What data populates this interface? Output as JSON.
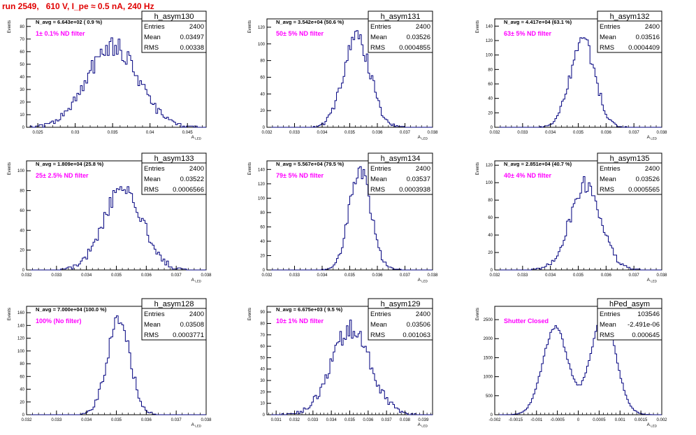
{
  "title": "run 2549,   610 V, I_pe ≈ 0.5 nA, 240 Hz",
  "ylabel": "Events",
  "xlabel": "A_LED",
  "stat_labels": {
    "entries": "Entries",
    "mean": "Mean",
    "rms": "RMS"
  },
  "colors": {
    "title": "#e00000",
    "hist": "#00007f",
    "annotation": "#ff00ff",
    "axis": "#000000"
  },
  "chart_data": [
    {
      "type": "histogram",
      "name": "h_asym130",
      "navg": "N_avg = 6.643e+02 ( 0.9 %)",
      "filter": "1± 0.1% ND filter",
      "entries": "2400",
      "mean": "0.03497",
      "rms": "0.00338",
      "xlim": [
        0.0235,
        0.0475
      ],
      "ylim": [
        0,
        86
      ],
      "xticks": [
        0.025,
        0.03,
        0.035,
        0.04,
        0.045
      ],
      "xticklabels": [
        "0.025",
        "0.03",
        "0.035",
        "0.04",
        "0.045"
      ],
      "yticks": [
        0,
        10,
        20,
        30,
        40,
        50,
        60,
        70,
        80
      ],
      "yticklabels": [
        "0",
        "10",
        "20",
        "30",
        "40",
        "50",
        "60",
        "70",
        "80"
      ],
      "mu": 0.035,
      "sigma": 0.00338,
      "peak": 65,
      "nbins": 100,
      "seed": 130
    },
    {
      "type": "histogram",
      "name": "h_asym131",
      "navg": "N_avg = 3.542e+04 (50.6 %)",
      "filter": "50± 5% ND filter",
      "entries": "2400",
      "mean": "0.03526",
      "rms": "0.0004855",
      "xlim": [
        0.032,
        0.038
      ],
      "ylim": [
        0,
        130
      ],
      "xticks": [
        0.032,
        0.033,
        0.034,
        0.035,
        0.036,
        0.037,
        0.038
      ],
      "xticklabels": [
        "0.032",
        "0.033",
        "0.034",
        "0.035",
        "0.036",
        "0.037",
        "0.038"
      ],
      "yticks": [
        0,
        20,
        40,
        60,
        80,
        100,
        120
      ],
      "yticklabels": [
        "0",
        "20",
        "40",
        "60",
        "80",
        "100",
        "120"
      ],
      "mu": 0.03526,
      "sigma": 0.000486,
      "peak": 108,
      "nbins": 100,
      "seed": 131
    },
    {
      "type": "histogram",
      "name": "h_asym132",
      "navg": "N_avg = 4.417e+04 (63.1 %)",
      "filter": "63± 5% ND filter",
      "entries": "2400",
      "mean": "0.03516",
      "rms": "0.0004409",
      "xlim": [
        0.032,
        0.038
      ],
      "ylim": [
        0,
        150
      ],
      "xticks": [
        0.032,
        0.033,
        0.034,
        0.035,
        0.036,
        0.037,
        0.038
      ],
      "xticklabels": [
        "0.032",
        "0.033",
        "0.034",
        "0.035",
        "0.036",
        "0.037",
        "0.038"
      ],
      "yticks": [
        0,
        20,
        40,
        60,
        80,
        100,
        120,
        140
      ],
      "yticklabels": [
        "0",
        "20",
        "40",
        "60",
        "80",
        "100",
        "120",
        "140"
      ],
      "mu": 0.03516,
      "sigma": 0.000441,
      "peak": 122,
      "nbins": 100,
      "seed": 132
    },
    {
      "type": "histogram",
      "name": "h_asym133",
      "navg": "N_avg = 1.809e+04 (25.8 %)",
      "filter": "25± 2.5% ND filter",
      "entries": "2400",
      "mean": "0.03522",
      "rms": "0.0006566",
      "xlim": [
        0.032,
        0.038
      ],
      "ylim": [
        0,
        110
      ],
      "xticks": [
        0.032,
        0.033,
        0.034,
        0.035,
        0.036,
        0.037,
        0.038
      ],
      "xticklabels": [
        "0.032",
        "0.033",
        "0.034",
        "0.035",
        "0.036",
        "0.037",
        "0.038"
      ],
      "yticks": [
        0,
        20,
        40,
        60,
        80,
        100
      ],
      "yticklabels": [
        "0",
        "20",
        "40",
        "60",
        "80",
        "100"
      ],
      "mu": 0.03522,
      "sigma": 0.000657,
      "peak": 82,
      "nbins": 100,
      "seed": 133
    },
    {
      "type": "histogram",
      "name": "h_asym134",
      "navg": "N_avg = 5.567e+04 (79.5 %)",
      "filter": "79± 5% ND filter",
      "entries": "2400",
      "mean": "0.03537",
      "rms": "0.0003938",
      "xlim": [
        0.032,
        0.038
      ],
      "ylim": [
        0,
        152
      ],
      "xticks": [
        0.032,
        0.033,
        0.034,
        0.035,
        0.036,
        0.037,
        0.038
      ],
      "xticklabels": [
        "0.032",
        "0.033",
        "0.034",
        "0.035",
        "0.036",
        "0.037",
        "0.038"
      ],
      "yticks": [
        0,
        20,
        40,
        60,
        80,
        100,
        120,
        140
      ],
      "yticklabels": [
        "0",
        "20",
        "40",
        "60",
        "80",
        "100",
        "120",
        "140"
      ],
      "mu": 0.03537,
      "sigma": 0.000394,
      "peak": 138,
      "nbins": 100,
      "seed": 134
    },
    {
      "type": "histogram",
      "name": "h_asym135",
      "navg": "N_avg = 2.851e+04 (40.7 %)",
      "filter": "40± 4% ND filter",
      "entries": "2400",
      "mean": "0.03526",
      "rms": "0.0005565",
      "xlim": [
        0.032,
        0.038
      ],
      "ylim": [
        0,
        125
      ],
      "xticks": [
        0.032,
        0.033,
        0.034,
        0.035,
        0.036,
        0.037,
        0.038
      ],
      "xticklabels": [
        "0.032",
        "0.033",
        "0.034",
        "0.035",
        "0.036",
        "0.037",
        "0.038"
      ],
      "yticks": [
        0,
        20,
        40,
        60,
        80,
        100,
        120
      ],
      "yticklabels": [
        "0",
        "20",
        "40",
        "60",
        "80",
        "100",
        "120"
      ],
      "mu": 0.03526,
      "sigma": 0.000557,
      "peak": 98,
      "nbins": 100,
      "seed": 135
    },
    {
      "type": "histogram",
      "name": "h_asym128",
      "navg": "N_avg = 7.000e+04 (100.0 %)",
      "filter": "100% (No filter)",
      "entries": "2400",
      "mean": "0.03508",
      "rms": "0.0003771",
      "xlim": [
        0.032,
        0.038
      ],
      "ylim": [
        0,
        170
      ],
      "xticks": [
        0.032,
        0.033,
        0.034,
        0.035,
        0.036,
        0.037,
        0.038
      ],
      "xticklabels": [
        "0.032",
        "0.033",
        "0.034",
        "0.035",
        "0.036",
        "0.037",
        "0.038"
      ],
      "yticks": [
        0,
        20,
        40,
        60,
        80,
        100,
        120,
        140,
        160
      ],
      "yticklabels": [
        "0",
        "20",
        "40",
        "60",
        "80",
        "100",
        "120",
        "140",
        "160"
      ],
      "mu": 0.03508,
      "sigma": 0.000377,
      "peak": 150,
      "nbins": 100,
      "seed": 128
    },
    {
      "type": "histogram",
      "name": "h_asym129",
      "navg": "N_avg = 6.675e+03 ( 9.5 %)",
      "filter": "10± 1% ND filter",
      "entries": "2400",
      "mean": "0.03506",
      "rms": "0.001063",
      "xlim": [
        0.0305,
        0.0395
      ],
      "ylim": [
        0,
        95
      ],
      "xticks": [
        0.031,
        0.032,
        0.033,
        0.034,
        0.035,
        0.036,
        0.037,
        0.038,
        0.039
      ],
      "xticklabels": [
        "0.031",
        "0.032",
        "0.033",
        "0.034",
        "0.035",
        "0.036",
        "0.037",
        "0.038",
        "0.039"
      ],
      "yticks": [
        0,
        10,
        20,
        30,
        40,
        50,
        60,
        70,
        80,
        90
      ],
      "yticklabels": [
        "0",
        "10",
        "20",
        "30",
        "40",
        "50",
        "60",
        "70",
        "80",
        "90"
      ],
      "mu": 0.03506,
      "sigma": 0.00106,
      "peak": 75,
      "nbins": 100,
      "seed": 129
    },
    {
      "type": "histogram",
      "name": "hPed_asym",
      "navg": "",
      "filter": "Shutter Closed",
      "entries": "103546",
      "mean": "-2.491e-06",
      "rms": "0.000645",
      "xlim": [
        -0.002,
        0.002
      ],
      "ylim": [
        0,
        2850
      ],
      "xticks": [
        -0.002,
        -0.0015,
        -0.001,
        -0.0005,
        0,
        0.0005,
        0.001,
        0.0015,
        0.002
      ],
      "xticklabels": [
        "-0.002",
        "-0.0015",
        "-0.001",
        "-0.0005",
        "0",
        "0.0005",
        "0.001",
        "0.0015",
        "0.002"
      ],
      "yticks": [
        0,
        500,
        1000,
        1500,
        2000,
        2500
      ],
      "yticklabels": [
        "0",
        "500",
        "1000",
        "1500",
        "2000",
        "2500"
      ],
      "bimodal": true,
      "modes": [
        -0.00055,
        0.0006
      ],
      "sigma": 0.0003,
      "heights": [
        2300,
        2600
      ],
      "peak": 2600,
      "nbins": 100,
      "seed": 200
    }
  ]
}
